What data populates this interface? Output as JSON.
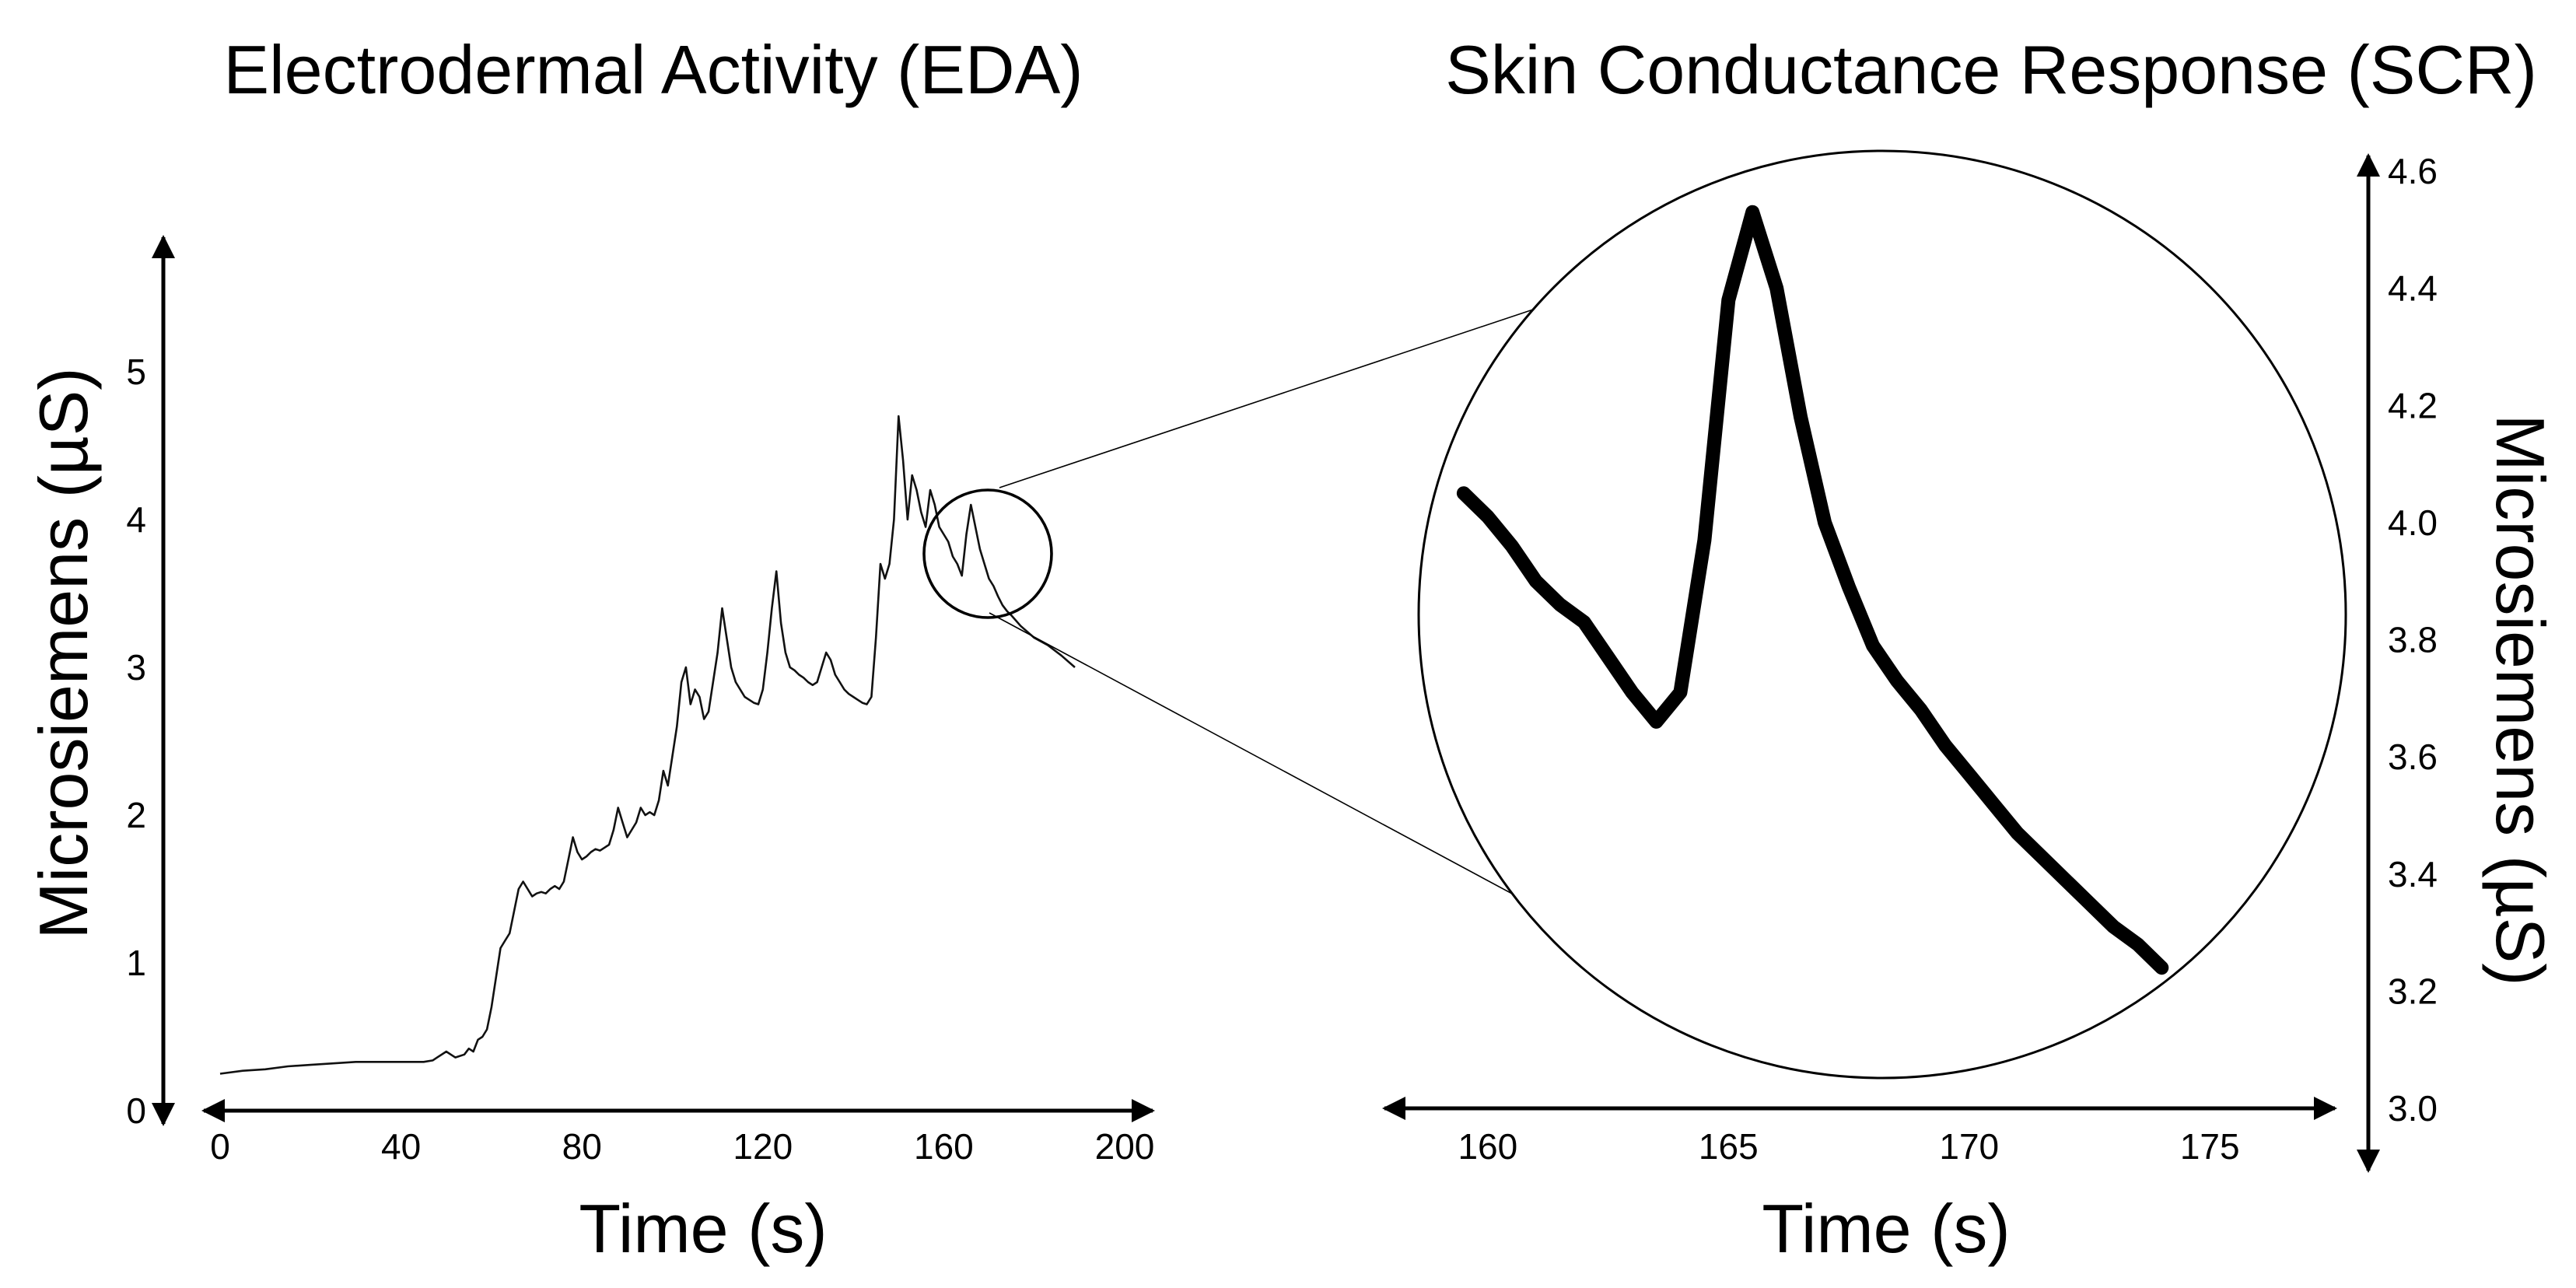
{
  "colors": {
    "line": "#000000",
    "background": "#ffffff"
  },
  "chart_data": [
    {
      "type": "line",
      "title": "Electrodermal Activity (EDA)",
      "xlabel": "Time (s)",
      "ylabel": "Microsiemens (µS)",
      "xlim": [
        0,
        200
      ],
      "ylim": [
        0,
        5.5
      ],
      "x_ticks": [
        "0",
        "40",
        "80",
        "120",
        "160",
        "200"
      ],
      "y_ticks": [
        "0",
        "1",
        "2",
        "3",
        "4",
        "5"
      ],
      "zoom_window": {
        "x": [
          160,
          175
        ],
        "y": [
          3.3,
          4.1
        ]
      },
      "series": [
        {
          "name": "EDA",
          "x": [
            0,
            5,
            10,
            15,
            20,
            25,
            30,
            35,
            40,
            45,
            47,
            48,
            50,
            51,
            52,
            54,
            55,
            56,
            57,
            58,
            59,
            60,
            61,
            62,
            63,
            64,
            65,
            66,
            67,
            68,
            69,
            70,
            71,
            72,
            73,
            74,
            75,
            76,
            77,
            78,
            79,
            80,
            81,
            82,
            83,
            84,
            85,
            86,
            87,
            88,
            89,
            90,
            91,
            92,
            93,
            94,
            95,
            96,
            97,
            98,
            99,
            100,
            101,
            102,
            103,
            104,
            105,
            106,
            107,
            108,
            109,
            110,
            111,
            112,
            113,
            114,
            115,
            116,
            117,
            118,
            119,
            120,
            121,
            122,
            123,
            124,
            125,
            126,
            127,
            128,
            129,
            130,
            131,
            132,
            133,
            134,
            135,
            136,
            137,
            138,
            139,
            140,
            141,
            142,
            143,
            144,
            145,
            146,
            147,
            148,
            149,
            150,
            151,
            152,
            153,
            154,
            155,
            156,
            157,
            158,
            159,
            160,
            161,
            162,
            163,
            164,
            165,
            166,
            167,
            168,
            169,
            170,
            171,
            172,
            173,
            174,
            175,
            177,
            180,
            183,
            186,
            189
          ],
          "values": [
            0.25,
            0.27,
            0.28,
            0.3,
            0.31,
            0.32,
            0.33,
            0.33,
            0.33,
            0.33,
            0.34,
            0.36,
            0.4,
            0.38,
            0.36,
            0.38,
            0.42,
            0.4,
            0.48,
            0.5,
            0.55,
            0.7,
            0.9,
            1.1,
            1.15,
            1.2,
            1.35,
            1.5,
            1.55,
            1.5,
            1.45,
            1.47,
            1.48,
            1.47,
            1.5,
            1.52,
            1.5,
            1.55,
            1.7,
            1.85,
            1.75,
            1.7,
            1.72,
            1.75,
            1.77,
            1.76,
            1.78,
            1.8,
            1.9,
            2.05,
            1.95,
            1.85,
            1.9,
            1.95,
            2.05,
            2.0,
            2.02,
            2.0,
            2.1,
            2.3,
            2.2,
            2.4,
            2.6,
            2.9,
            3.0,
            2.75,
            2.85,
            2.8,
            2.65,
            2.7,
            2.9,
            3.1,
            3.4,
            3.2,
            3.0,
            2.9,
            2.85,
            2.8,
            2.78,
            2.76,
            2.75,
            2.85,
            3.1,
            3.4,
            3.65,
            3.3,
            3.1,
            3.0,
            2.98,
            2.95,
            2.93,
            2.9,
            2.88,
            2.9,
            3.0,
            3.1,
            3.05,
            2.95,
            2.9,
            2.85,
            2.82,
            2.8,
            2.78,
            2.76,
            2.75,
            2.8,
            3.2,
            3.7,
            3.6,
            3.7,
            4.0,
            4.7,
            4.4,
            4.0,
            4.3,
            4.2,
            4.05,
            3.95,
            4.2,
            4.1,
            3.95,
            3.9,
            3.85,
            3.75,
            3.7,
            3.62,
            3.9,
            4.1,
            3.95,
            3.8,
            3.7,
            3.6,
            3.55,
            3.48,
            3.42,
            3.38,
            3.35,
            3.28,
            3.2,
            3.15,
            3.08,
            3.0
          ]
        }
      ]
    },
    {
      "type": "line",
      "title": "Skin Conductance Response (SCR)",
      "xlabel": "Time (s)",
      "ylabel": "Microsiemens (µS)",
      "xlim": [
        158.5,
        177
      ],
      "ylim": [
        3.0,
        4.6
      ],
      "x_ticks": [
        "160",
        "165",
        "170",
        "175"
      ],
      "y_ticks": [
        "3.0",
        "3.2",
        "3.4",
        "3.6",
        "3.8",
        "4.0",
        "4.2",
        "4.4",
        "4.6"
      ],
      "series": [
        {
          "name": "SCR",
          "x": [
            159.5,
            160.0,
            160.5,
            161.0,
            161.5,
            162.0,
            162.5,
            163.0,
            163.5,
            164.0,
            164.5,
            165.0,
            165.5,
            166.0,
            166.5,
            167.0,
            167.5,
            168.0,
            168.5,
            169.0,
            169.5,
            170.0,
            170.5,
            171.0,
            171.5,
            172.0,
            172.5,
            173.0,
            173.5,
            174.0
          ],
          "values": [
            4.05,
            4.01,
            3.96,
            3.9,
            3.86,
            3.83,
            3.77,
            3.71,
            3.66,
            3.71,
            3.97,
            4.38,
            4.53,
            4.4,
            4.18,
            4.0,
            3.89,
            3.79,
            3.73,
            3.68,
            3.62,
            3.57,
            3.52,
            3.47,
            3.43,
            3.39,
            3.35,
            3.31,
            3.28,
            3.24
          ]
        }
      ]
    }
  ]
}
